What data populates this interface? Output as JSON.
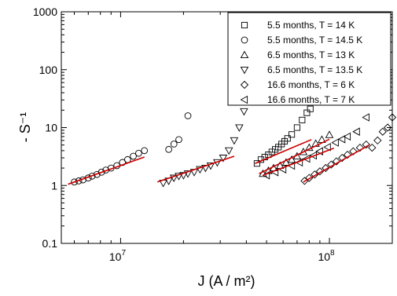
{
  "chart_data": {
    "type": "scatter",
    "xlabel": "J (A / m²)",
    "ylabel": "- S⁻¹",
    "x_scale": "log",
    "y_scale": "log",
    "xlim": [
      5200000.0,
      200000000.0
    ],
    "ylim": [
      0.1,
      1000
    ],
    "grid": false,
    "legend_position": "top-right",
    "y_ticks": [
      {
        "value": 0.1,
        "label": "0.1"
      },
      {
        "value": 1,
        "label": "1"
      },
      {
        "value": 10,
        "label": "10"
      },
      {
        "value": 100,
        "label": "100"
      },
      {
        "value": 1000,
        "label": "1000"
      }
    ],
    "x_ticks": [
      {
        "value": 10000000.0,
        "base": "10",
        "exp": "7"
      },
      {
        "value": 100000000.0,
        "base": "10",
        "exp": "8"
      }
    ],
    "fit_line_color": "#cc0000",
    "series": [
      {
        "name": "5.5 months, T = 14 K",
        "marker": "square",
        "points": [
          [
            45000000.0,
            2.4
          ],
          [
            47000000.0,
            2.8
          ],
          [
            49000000.0,
            3.1
          ],
          [
            51000000.0,
            3.4
          ],
          [
            53000000.0,
            3.8
          ],
          [
            55000000.0,
            4.2
          ],
          [
            57000000.0,
            4.6
          ],
          [
            59000000.0,
            5.2
          ],
          [
            61000000.0,
            5.8
          ],
          [
            63000000.0,
            6.5
          ],
          [
            66000000.0,
            7.6
          ],
          [
            70000000.0,
            10.0
          ],
          [
            74000000.0,
            13.5
          ],
          [
            78000000.0,
            18.0
          ],
          [
            81000000.0,
            21.0
          ]
        ],
        "fit": [
          [
            44000000.0,
            2.4
          ],
          [
            82000000.0,
            6.2
          ]
        ]
      },
      {
        "name": "5.5 months, T = 14.5 K",
        "marker": "circle",
        "points": [
          [
            6000000.0,
            1.15
          ],
          [
            6300000.0,
            1.2
          ],
          [
            6600000.0,
            1.25
          ],
          [
            7000000.0,
            1.35
          ],
          [
            7300000.0,
            1.45
          ],
          [
            7700000.0,
            1.55
          ],
          [
            8100000.0,
            1.7
          ],
          [
            8500000.0,
            1.85
          ],
          [
            9000000.0,
            2.0
          ],
          [
            9600000.0,
            2.2
          ],
          [
            10200000.0,
            2.5
          ],
          [
            10800000.0,
            2.8
          ],
          [
            11500000.0,
            3.2
          ],
          [
            12200000.0,
            3.6
          ],
          [
            13000000.0,
            4.0
          ],
          [
            17000000.0,
            4.2
          ],
          [
            18000000.0,
            5.2
          ],
          [
            19000000.0,
            6.2
          ],
          [
            21000000.0,
            16.0
          ]
        ],
        "fit": [
          [
            5600000.0,
            1.05
          ],
          [
            13000000.0,
            3.1
          ]
        ]
      },
      {
        "name": "6.5 months, T = 13 K",
        "marker": "triangle-up",
        "points": [
          [
            48000000.0,
            1.6
          ],
          [
            51000000.0,
            1.8
          ],
          [
            54000000.0,
            2.0
          ],
          [
            58000000.0,
            2.2
          ],
          [
            62000000.0,
            2.5
          ],
          [
            66000000.0,
            2.8
          ],
          [
            70000000.0,
            3.2
          ],
          [
            75000000.0,
            3.8
          ],
          [
            80000000.0,
            4.5
          ],
          [
            86000000.0,
            5.3
          ],
          [
            92000000.0,
            6.2
          ],
          [
            100000000.0,
            7.5
          ]
        ],
        "fit": [
          [
            46000000.0,
            1.6
          ],
          [
            100000000.0,
            6.3
          ]
        ]
      },
      {
        "name": "6.5 months, T = 13.5 K",
        "marker": "triangle-down",
        "points": [
          [
            16000000.0,
            1.1
          ],
          [
            17000000.0,
            1.2
          ],
          [
            18000000.0,
            1.35
          ],
          [
            19000000.0,
            1.45
          ],
          [
            20000000.0,
            1.5
          ],
          [
            21000000.0,
            1.6
          ],
          [
            22500000.0,
            1.7
          ],
          [
            24000000.0,
            1.9
          ],
          [
            25500000.0,
            2.0
          ],
          [
            27000000.0,
            2.2
          ],
          [
            29000000.0,
            2.5
          ],
          [
            31000000.0,
            3.0
          ],
          [
            33000000.0,
            4.0
          ],
          [
            35000000.0,
            6.0
          ],
          [
            37000000.0,
            10.0
          ],
          [
            39000000.0,
            19.0
          ]
        ],
        "fit": [
          [
            15000000.0,
            1.15
          ],
          [
            35000000.0,
            3.2
          ]
        ]
      },
      {
        "name": "16.6 months, T = 6 K",
        "marker": "diamond",
        "points": [
          [
            76000000.0,
            1.2
          ],
          [
            80000000.0,
            1.35
          ],
          [
            85000000.0,
            1.55
          ],
          [
            90000000.0,
            1.75
          ],
          [
            96000000.0,
            2.0
          ],
          [
            102000000.0,
            2.3
          ],
          [
            108000000.0,
            2.6
          ],
          [
            115000000.0,
            3.0
          ],
          [
            122000000.0,
            3.4
          ],
          [
            130000000.0,
            3.9
          ],
          [
            140000000.0,
            4.5
          ],
          [
            150000000.0,
            5.1
          ],
          [
            160000000.0,
            4.5
          ],
          [
            170000000.0,
            6.0
          ],
          [
            180000000.0,
            8.5
          ],
          [
            190000000.0,
            10.0
          ],
          [
            200000000.0,
            15.0
          ]
        ],
        "fit": [
          [
            75000000.0,
            1.15
          ],
          [
            155000000.0,
            5.0
          ]
        ]
      },
      {
        "name": "16.6 months, T = 7 K",
        "marker": "triangle-left",
        "points": [
          [
            50000000.0,
            1.5
          ],
          [
            55000000.0,
            1.7
          ],
          [
            60000000.0,
            1.9
          ],
          [
            66000000.0,
            2.2
          ],
          [
            72000000.0,
            2.5
          ],
          [
            78000000.0,
            2.9
          ],
          [
            84000000.0,
            3.3
          ],
          [
            90000000.0,
            3.9
          ],
          [
            98000000.0,
            4.6
          ],
          [
            107000000.0,
            5.5
          ],
          [
            115000000.0,
            6.3
          ],
          [
            122000000.0,
            7.0
          ],
          [
            135000000.0,
            8.5
          ],
          [
            150000000.0,
            15.0
          ]
        ],
        "fit": [
          [
            48000000.0,
            1.5
          ],
          [
            105000000.0,
            4.4
          ]
        ]
      }
    ]
  }
}
